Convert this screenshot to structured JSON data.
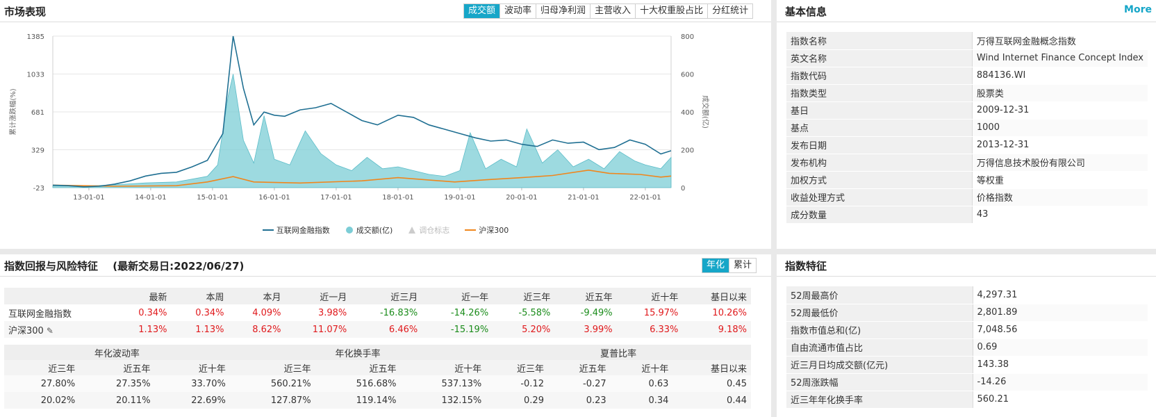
{
  "market": {
    "title": "市场表现",
    "tabs": [
      "成交额",
      "波动率",
      "归母净利润",
      "主营收入",
      "十大权重股占比",
      "分红统计"
    ],
    "active_tab": 0,
    "legend": {
      "index_name": "互联网金融指数",
      "volume": "成交额(亿)",
      "adjust": "调仓标志",
      "hs300": "沪深300"
    },
    "y_left_label": "累计涨跌幅(%)",
    "y_right_label": "成交额(亿)",
    "colors": {
      "index": "#1f6f92",
      "volume": "#7ccdd6",
      "hs300": "#f0861c",
      "tab_active": "#16a6c8"
    }
  },
  "chart_data": {
    "type": "line",
    "x_ticks": [
      "13-01-01",
      "14-01-01",
      "15-01-01",
      "16-01-01",
      "17-01-01",
      "18-01-01",
      "19-01-01",
      "20-01-01",
      "21-01-01",
      "22-01-01"
    ],
    "x_range": [
      "2012-06",
      "2022-06"
    ],
    "ylim_left": [
      -23,
      1385
    ],
    "y_left_ticks": [
      1385,
      1033,
      681,
      329,
      -23
    ],
    "ylim_right": [
      0,
      800
    ],
    "y_right_ticks": [
      800,
      600,
      400,
      200,
      0
    ],
    "series": [
      {
        "name": "互联网金融指数",
        "axis": "left",
        "points": [
          [
            "2012-06",
            0
          ],
          [
            "2012-09",
            -5
          ],
          [
            "2012-12",
            -15
          ],
          [
            "2013-03",
            -10
          ],
          [
            "2013-06",
            10
          ],
          [
            "2013-09",
            40
          ],
          [
            "2013-12",
            85
          ],
          [
            "2014-03",
            110
          ],
          [
            "2014-06",
            120
          ],
          [
            "2014-09",
            170
          ],
          [
            "2014-12",
            230
          ],
          [
            "2015-03",
            480
          ],
          [
            "2015-05",
            1385
          ],
          [
            "2015-07",
            900
          ],
          [
            "2015-09",
            560
          ],
          [
            "2015-11",
            680
          ],
          [
            "2016-01",
            650
          ],
          [
            "2016-03",
            640
          ],
          [
            "2016-06",
            700
          ],
          [
            "2016-09",
            720
          ],
          [
            "2016-12",
            760
          ],
          [
            "2017-03",
            680
          ],
          [
            "2017-06",
            600
          ],
          [
            "2017-09",
            560
          ],
          [
            "2018-01",
            650
          ],
          [
            "2018-04",
            630
          ],
          [
            "2018-07",
            560
          ],
          [
            "2018-10",
            520
          ],
          [
            "2019-01",
            480
          ],
          [
            "2019-04",
            440
          ],
          [
            "2019-07",
            410
          ],
          [
            "2019-10",
            420
          ],
          [
            "2020-01",
            380
          ],
          [
            "2020-04",
            360
          ],
          [
            "2020-07",
            420
          ],
          [
            "2020-10",
            390
          ],
          [
            "2021-01",
            400
          ],
          [
            "2021-04",
            330
          ],
          [
            "2021-07",
            350
          ],
          [
            "2021-10",
            420
          ],
          [
            "2022-01",
            380
          ],
          [
            "2022-04",
            290
          ],
          [
            "2022-06",
            320
          ]
        ]
      },
      {
        "name": "成交额(亿)",
        "axis": "right",
        "points": [
          [
            "2012-06",
            10
          ],
          [
            "2012-12",
            8
          ],
          [
            "2013-06",
            15
          ],
          [
            "2013-12",
            25
          ],
          [
            "2014-06",
            30
          ],
          [
            "2014-12",
            60
          ],
          [
            "2015-02",
            120
          ],
          [
            "2015-04",
            480
          ],
          [
            "2015-05",
            600
          ],
          [
            "2015-07",
            250
          ],
          [
            "2015-09",
            130
          ],
          [
            "2015-11",
            380
          ],
          [
            "2016-01",
            150
          ],
          [
            "2016-04",
            120
          ],
          [
            "2016-07",
            300
          ],
          [
            "2016-10",
            180
          ],
          [
            "2017-01",
            120
          ],
          [
            "2017-04",
            90
          ],
          [
            "2017-07",
            160
          ],
          [
            "2017-10",
            100
          ],
          [
            "2018-01",
            110
          ],
          [
            "2018-04",
            90
          ],
          [
            "2018-07",
            70
          ],
          [
            "2018-10",
            60
          ],
          [
            "2019-01",
            90
          ],
          [
            "2019-03",
            290
          ],
          [
            "2019-06",
            100
          ],
          [
            "2019-09",
            150
          ],
          [
            "2019-12",
            110
          ],
          [
            "2020-02",
            310
          ],
          [
            "2020-05",
            130
          ],
          [
            "2020-08",
            200
          ],
          [
            "2020-11",
            110
          ],
          [
            "2021-02",
            150
          ],
          [
            "2021-05",
            100
          ],
          [
            "2021-08",
            190
          ],
          [
            "2021-11",
            140
          ],
          [
            "2022-01",
            120
          ],
          [
            "2022-04",
            100
          ],
          [
            "2022-06",
            160
          ]
        ]
      },
      {
        "name": "沪深300",
        "axis": "left",
        "points": [
          [
            "2012-06",
            0
          ],
          [
            "2013-06",
            -10
          ],
          [
            "2014-06",
            -5
          ],
          [
            "2014-12",
            30
          ],
          [
            "2015-05",
            80
          ],
          [
            "2015-09",
            30
          ],
          [
            "2016-06",
            20
          ],
          [
            "2017-06",
            40
          ],
          [
            "2018-01",
            70
          ],
          [
            "2018-12",
            30
          ],
          [
            "2019-06",
            50
          ],
          [
            "2020-01",
            70
          ],
          [
            "2020-07",
            90
          ],
          [
            "2021-02",
            140
          ],
          [
            "2021-06",
            110
          ],
          [
            "2021-12",
            100
          ],
          [
            "2022-04",
            75
          ],
          [
            "2022-06",
            85
          ]
        ]
      }
    ]
  },
  "basic_info": {
    "title": "基本信息",
    "more": "More",
    "rows": [
      {
        "k": "指数名称",
        "v": "万得互联网金融概念指数"
      },
      {
        "k": "英文名称",
        "v": "Wind Internet Finance Concept Index"
      },
      {
        "k": "指数代码",
        "v": "884136.WI"
      },
      {
        "k": "指数类型",
        "v": "股票类"
      },
      {
        "k": "基日",
        "v": "2009-12-31"
      },
      {
        "k": "基点",
        "v": "1000"
      },
      {
        "k": "发布日期",
        "v": "2013-12-31"
      },
      {
        "k": "发布机构",
        "v": "万得信息技术股份有限公司"
      },
      {
        "k": "加权方式",
        "v": "等权重"
      },
      {
        "k": "收益处理方式",
        "v": "价格指数"
      },
      {
        "k": "成分数量",
        "v": "43"
      }
    ]
  },
  "returns": {
    "title": "指数回报与风险特征",
    "subtitle": "(最新交易日:2022/06/27)",
    "tabs": [
      "年化",
      "累计"
    ],
    "active_tab": 0,
    "headers": [
      "",
      "最新",
      "本周",
      "本月",
      "近一月",
      "近三月",
      "近一年",
      "近三年",
      "近五年",
      "近十年",
      "基日以来"
    ],
    "rows": [
      {
        "name": "互联网金融指数",
        "values": [
          "0.34%",
          "0.34%",
          "4.09%",
          "3.98%",
          "-16.83%",
          "-14.26%",
          "-5.58%",
          "-9.49%",
          "15.97%",
          "10.26%"
        ]
      },
      {
        "name": "沪深300",
        "values": [
          "1.13%",
          "1.13%",
          "8.62%",
          "11.07%",
          "6.46%",
          "-15.19%",
          "5.20%",
          "3.99%",
          "6.33%",
          "9.18%"
        ]
      }
    ],
    "risk_groups": [
      "年化波动率",
      "年化换手率",
      "夏普比率"
    ],
    "risk_headers": [
      "近三年",
      "近五年",
      "近十年",
      "近三年",
      "近五年",
      "近十年",
      "近三年",
      "近五年",
      "近十年",
      "基日以来"
    ],
    "risk_rows": [
      [
        "27.80%",
        "27.35%",
        "33.70%",
        "560.21%",
        "516.68%",
        "537.13%",
        "-0.12",
        "-0.27",
        "0.63",
        "0.45"
      ],
      [
        "20.02%",
        "20.11%",
        "22.69%",
        "127.87%",
        "119.14%",
        "132.15%",
        "0.29",
        "0.23",
        "0.34",
        "0.44"
      ]
    ]
  },
  "features": {
    "title": "指数特征",
    "rows": [
      {
        "k": "52周最高价",
        "v": "4,297.31"
      },
      {
        "k": "52周最低价",
        "v": "2,801.89"
      },
      {
        "k": "指数市值总和(亿)",
        "v": "7,048.56"
      },
      {
        "k": "自由流通市值占比",
        "v": "0.69"
      },
      {
        "k": "近三月日均成交额(亿元)",
        "v": "143.38"
      },
      {
        "k": "52周涨跌幅",
        "v": "-14.26"
      },
      {
        "k": "近三年年化换手率",
        "v": "560.21"
      }
    ]
  }
}
